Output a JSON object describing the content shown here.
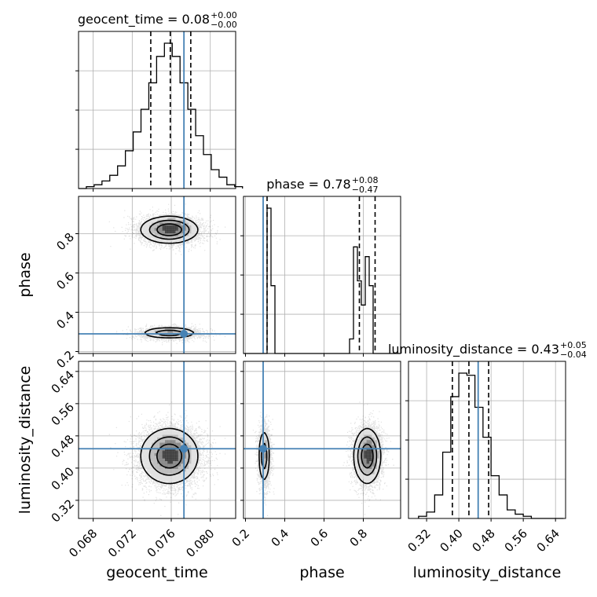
{
  "chart_data": {
    "type": "corner",
    "parameters": [
      "geocent_time",
      "phase",
      "luminosity_distance"
    ],
    "truths": {
      "geocent_time": 0.0773,
      "phase": 0.29,
      "luminosity_distance": 0.448
    },
    "colors": {
      "truth": "#4682b4",
      "hist": "#000000",
      "grid": "#b0b0b0",
      "quantile": "#000000"
    },
    "grid": true,
    "titles": [
      {
        "param": "geocent_time",
        "text": "geocent_time = 0.08",
        "sup": "+0.00",
        "sub": "−0.00"
      },
      {
        "param": "phase",
        "text": "phase = 0.78",
        "sup": "+0.08",
        "sub": "−0.47"
      },
      {
        "param": "luminosity_distance",
        "text": "luminosity_distance = 0.43",
        "sup": "+0.05",
        "sub": "−0.04"
      }
    ],
    "ranges": {
      "geocent_time": [
        0.0665,
        0.0826
      ],
      "phase": [
        0.19,
        0.99
      ],
      "luminosity_distance": [
        0.275,
        0.665
      ]
    },
    "ticks": {
      "geocent_time": [
        "0.068",
        "0.072",
        "0.076",
        "0.080"
      ],
      "phase": [
        "0.2",
        "0.4",
        "0.6",
        "0.8"
      ],
      "luminosity_distance": [
        "0.32",
        "0.40",
        "0.48",
        "0.56",
        "0.64"
      ]
    },
    "histograms": {
      "geocent_time": {
        "bin_start": 0.0665,
        "bin_width": 0.0008,
        "counts": [
          0,
          1,
          2,
          4,
          7,
          12,
          20,
          30,
          42,
          56,
          70,
          77,
          70,
          56,
          42,
          28,
          18,
          10,
          6,
          2,
          1
        ],
        "quantiles": [
          0.0739,
          0.0759,
          0.078
        ]
      },
      "phase": {
        "bin_start": 0.19,
        "bin_width": 0.02,
        "counts": [
          0,
          0,
          0,
          0,
          0,
          0,
          30,
          14,
          0,
          0,
          0,
          0,
          0,
          0,
          0,
          0,
          0,
          0,
          0,
          0,
          0,
          0,
          0,
          0,
          0,
          0,
          0,
          3,
          22,
          15,
          10,
          20,
          14,
          0,
          0,
          0,
          0,
          0,
          0,
          0
        ],
        "quantiles": [
          0.31,
          0.78,
          0.86
        ]
      },
      "luminosity_distance": {
        "bin_start": 0.3,
        "bin_width": 0.02,
        "counts": [
          1,
          3,
          11,
          31,
          57,
          68,
          67,
          52,
          38,
          20,
          11,
          4,
          2,
          1,
          0,
          0,
          0,
          0
        ],
        "quantiles": [
          0.384,
          0.425,
          0.474
        ]
      }
    },
    "modes": {
      "geocent_time": [
        {
          "mu": 0.0758,
          "sigma": 0.0015,
          "weight": 1
        }
      ],
      "phase": [
        {
          "mu": 0.295,
          "sigma": 0.015,
          "weight": 0.38
        },
        {
          "mu": 0.82,
          "sigma": 0.035,
          "weight": 0.62
        }
      ],
      "luminosity_distance": [
        {
          "mu": 0.43,
          "sigma": 0.035,
          "weight": 1
        }
      ]
    }
  }
}
